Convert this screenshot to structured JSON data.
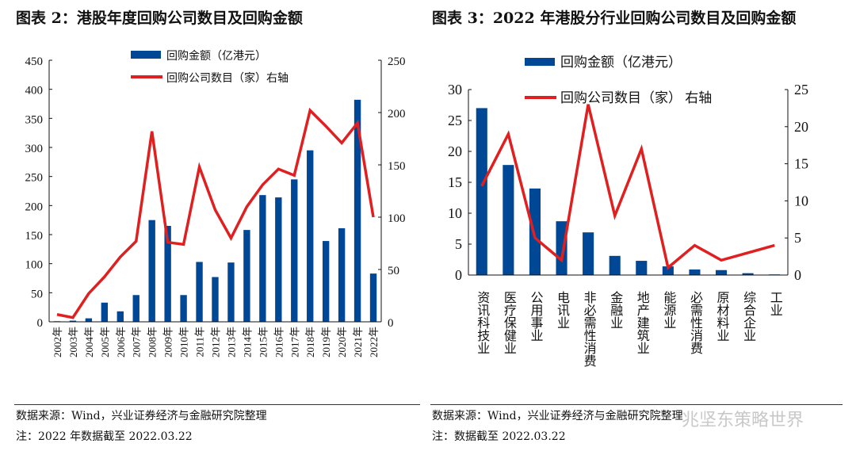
{
  "left": {
    "title": "图表 2：港股年度回购公司数目及回购金额",
    "source": "数据来源：Wind，兴业证券经济与金融研究院整理",
    "note": "注：2022 年数据截至 2022.03.22"
  },
  "right": {
    "title": "图表 3：2022 年港股分行业回购公司数目及回购金额",
    "source": "数据来源：Wind，兴业证券经济与金融研究院整理",
    "note": "注：数据截至 2022.03.22",
    "watermark": "兆坚东策略世界"
  },
  "colors": {
    "bar": "#004896",
    "line": "#e02020"
  },
  "chart_data": [
    {
      "type": "bar+line",
      "legend": [
        "回购金额（亿港元）",
        "回购公司数目（家）右轴"
      ],
      "legend_position": "top",
      "categories": [
        "2002年",
        "2003年",
        "2004年",
        "2005年",
        "2006年",
        "2007年",
        "2008年",
        "2009年",
        "2010年",
        "2011年",
        "2012年",
        "2013年",
        "2014年",
        "2015年",
        "2016年",
        "2017年",
        "2018年",
        "2019年",
        "2020年",
        "2021年",
        "2022年"
      ],
      "series": [
        {
          "name": "回购金额（亿港元）",
          "type": "bar",
          "axis": "left",
          "values": [
            1,
            2,
            6,
            33,
            18,
            46,
            175,
            165,
            46,
            103,
            77,
            102,
            158,
            218,
            214,
            245,
            295,
            139,
            161,
            382,
            83
          ]
        },
        {
          "name": "回购公司数目（家）右轴",
          "type": "line",
          "axis": "right",
          "values": [
            7,
            4,
            27,
            43,
            62,
            77,
            182,
            76,
            74,
            148,
            107,
            80,
            110,
            131,
            146,
            140,
            202,
            187,
            171,
            190,
            100
          ]
        }
      ],
      "ylim": [
        0,
        450
      ],
      "yticks": [
        0,
        50,
        100,
        150,
        200,
        250,
        300,
        350,
        400,
        450
      ],
      "y2lim": [
        0,
        250
      ],
      "y2ticks": [
        0,
        50,
        100,
        150,
        200,
        250
      ],
      "grid": false
    },
    {
      "type": "bar+line",
      "legend": [
        "回购金额（亿港元）",
        "回购公司数目（家） 右轴"
      ],
      "legend_position": "top",
      "categories": [
        "资讯科技业",
        "医疗保健业",
        "公用事业",
        "电讯业",
        "非必需性消费",
        "金融业",
        "地产建筑业",
        "能源业",
        "必需性消费",
        "原材料业",
        "综合企业",
        "工业"
      ],
      "series": [
        {
          "name": "回购金额（亿港元）",
          "type": "bar",
          "axis": "left",
          "values": [
            27,
            17.8,
            14,
            8.7,
            6.9,
            3.1,
            2.3,
            1.4,
            0.9,
            0.8,
            0.3,
            0.1
          ]
        },
        {
          "name": "回购公司数目（家） 右轴",
          "type": "line",
          "axis": "right",
          "values": [
            12,
            19,
            5,
            2,
            23,
            8,
            17,
            1,
            4,
            2,
            3,
            4
          ]
        }
      ],
      "ylim": [
        0,
        30
      ],
      "yticks": [
        0,
        5,
        10,
        15,
        20,
        25,
        30
      ],
      "y2lim": [
        0,
        25
      ],
      "y2ticks": [
        0,
        5,
        10,
        15,
        20,
        25
      ],
      "grid": false
    }
  ]
}
